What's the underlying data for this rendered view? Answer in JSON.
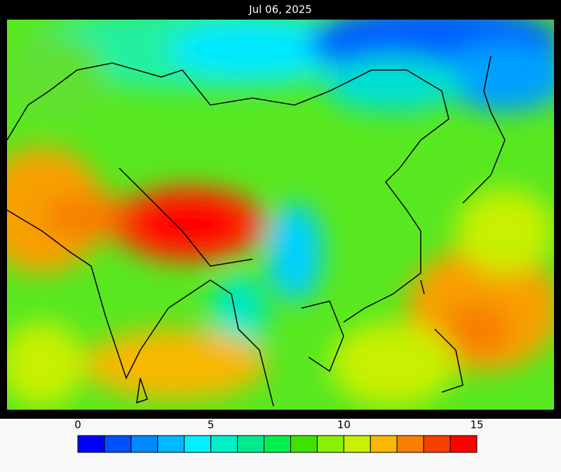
{
  "title": "Jul 06, 2025",
  "colorbar": {
    "range": [
      0,
      15
    ],
    "ticks": [
      0,
      5,
      10,
      15
    ],
    "colors": [
      "#0000ff",
      "#0050ff",
      "#0088ff",
      "#00b8ff",
      "#00f0ff",
      "#00f0c8",
      "#00e890",
      "#00f050",
      "#40e000",
      "#88f000",
      "#c8f000",
      "#f8b800",
      "#f88000",
      "#f84000",
      "#ff0000"
    ]
  }
}
